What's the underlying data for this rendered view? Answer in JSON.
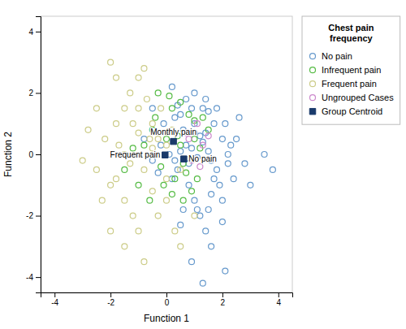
{
  "chart_data": {
    "type": "scatter",
    "title": "Chest pain\nfrequency",
    "xlabel": "Function 1",
    "ylabel": "Function 2",
    "xlim": [
      -4.5,
      4.5
    ],
    "ylim": [
      -4.5,
      4.5
    ],
    "xticks": [
      -4,
      -2,
      0,
      2,
      4
    ],
    "yticks": [
      -4,
      -2,
      0,
      2,
      4
    ],
    "grid": false,
    "legend": "right",
    "series": [
      {
        "name": "No pain",
        "color": "#6699cc",
        "marker": "open-circle",
        "x": [
          0.1,
          0.3,
          0.5,
          0.7,
          0.9,
          1.1,
          1.3,
          0.8,
          1.5,
          1.2,
          0.6,
          1.0,
          1.4,
          1.6,
          0.4,
          0.2,
          0.8,
          1.0,
          1.2,
          0.5,
          1.5,
          2.0,
          1.8,
          2.2,
          2.0,
          1.7,
          1.3,
          0.9,
          0.5,
          1.5,
          2.1,
          2.3,
          1.9,
          1.6,
          1.1,
          -0.2,
          -0.5,
          -0.8,
          -0.3,
          -0.1,
          0.3,
          0.7,
          1.0,
          1.4,
          1.8,
          2.5,
          2.8,
          2.4,
          2.0,
          1.6,
          0.9,
          1.3,
          2.1,
          3.0,
          3.5,
          3.8,
          2.6,
          0.2,
          -0.5,
          0.4,
          1.7,
          0.6,
          1.4,
          2.2,
          1.0
        ],
        "values": [
          0.0,
          -0.2,
          0.1,
          0.3,
          0.2,
          -0.1,
          0.4,
          -0.3,
          0.1,
          0.6,
          0.8,
          1.0,
          0.7,
          -0.2,
          -0.5,
          -0.8,
          -1.0,
          -1.5,
          -2.0,
          -2.3,
          -1.8,
          -1.5,
          -0.5,
          0.0,
          0.5,
          1.0,
          1.5,
          1.5,
          1.3,
          1.4,
          1.0,
          0.3,
          -1.0,
          -1.3,
          -1.8,
          0.3,
          -0.2,
          0.5,
          -0.6,
          1.0,
          1.2,
          1.8,
          2.0,
          1.8,
          1.5,
          0.5,
          -0.3,
          -0.8,
          -2.2,
          -3.0,
          -3.5,
          -4.2,
          -3.8,
          -1.0,
          0.0,
          -0.5,
          1.2,
          2.2,
          1.5,
          1.6,
          -0.8,
          -1.8,
          -2.5,
          -0.3,
          0.7
        ]
      },
      {
        "name": "Infrequent pain",
        "color": "#55bb44",
        "marker": "open-circle",
        "x": [
          -0.3,
          0.1,
          0.5,
          0.8,
          1.0,
          0.6,
          0.3,
          -0.1,
          0.2,
          0.6,
          -0.5,
          -0.8,
          -0.2,
          0.4,
          0.7,
          1.2,
          1.1,
          0.9,
          1.3,
          1.5,
          -1.5,
          -1.2,
          -1.0,
          -0.6,
          0.0,
          0.5,
          0.2,
          1.0,
          -0.4
        ],
        "values": [
          2.0,
          1.9,
          1.7,
          1.3,
          1.1,
          -0.3,
          -0.8,
          -1.0,
          -1.3,
          -1.5,
          0.8,
          0.3,
          -0.4,
          0.6,
          -0.6,
          0.2,
          -0.8,
          -1.2,
          1.2,
          0.8,
          -0.5,
          0.2,
          -1.0,
          -1.5,
          0.5,
          0.3,
          1.5,
          0.5,
          1.2
        ]
      },
      {
        "name": "Frequent pain",
        "color": "#cccc88",
        "marker": "open-circle",
        "x": [
          -2.0,
          -1.5,
          -1.8,
          -2.2,
          -1.0,
          -1.3,
          -1.8,
          -2.0,
          -1.5,
          -2.5,
          -1.0,
          -0.5,
          -0.3,
          -0.8,
          -1.2,
          -0.5,
          0.0,
          -0.7,
          -1.3,
          -0.2,
          0.2,
          -0.5,
          -1.7,
          -2.3,
          -1.0,
          0.0,
          0.5,
          -3.0,
          -2.8,
          -2.5,
          -1.5,
          -0.8,
          0.3,
          1.0,
          0.5,
          -1.8,
          -0.8,
          -1.5,
          -0.3,
          -2.0,
          -1.2,
          0.0,
          -0.6,
          -1.0
        ],
        "values": [
          3.0,
          1.5,
          1.0,
          0.5,
          0.7,
          -0.3,
          -0.8,
          -1.0,
          -1.5,
          -0.5,
          1.5,
          1.0,
          0.5,
          -0.5,
          -2.0,
          -1.2,
          -0.8,
          1.8,
          2.0,
          1.5,
          0.8,
          0.2,
          0.3,
          -1.5,
          -2.5,
          -1.5,
          -0.5,
          -0.2,
          0.8,
          1.5,
          -3.0,
          -3.5,
          -2.5,
          -2.0,
          -3.0,
          2.5,
          2.8,
          0.0,
          -2.0,
          -2.5,
          1.0,
          0.3,
          0.5,
          2.5
        ]
      },
      {
        "name": "Ungrouped Cases",
        "color": "#cc88cc",
        "marker": "open-circle",
        "x": [
          0.8,
          1.3,
          0.9,
          1.5,
          1.1,
          0.7,
          1.2
        ],
        "values": [
          0.5,
          0.3,
          -0.2,
          0.6,
          1.0,
          0.7,
          -0.4
        ]
      },
      {
        "name": "Group Centroid",
        "color": "#1a3a6b",
        "marker": "square",
        "x": [
          -0.05,
          0.25,
          0.62
        ],
        "values": [
          -0.02,
          0.42,
          -0.15
        ]
      }
    ],
    "annotations": [
      {
        "text": "Frequent pain",
        "x": -0.05,
        "y": -0.02
      },
      {
        "text": "Monthly pain",
        "x": 0.25,
        "y": 0.42
      },
      {
        "text": "No pain",
        "x": 0.62,
        "y": -0.15
      }
    ]
  }
}
